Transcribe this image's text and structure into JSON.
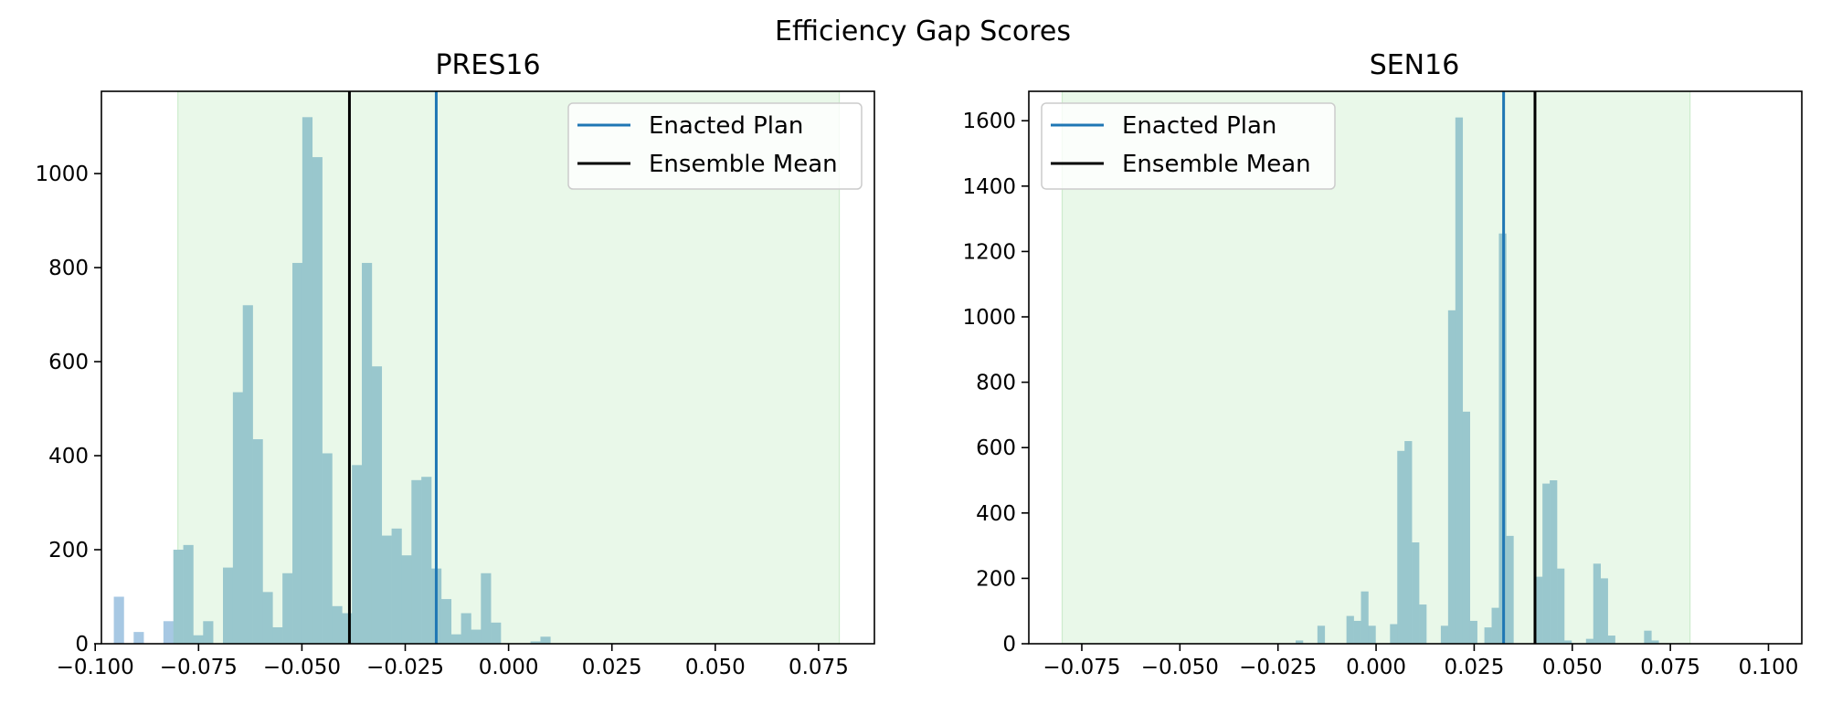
{
  "title": "Efficiency Gap Scores",
  "colors": {
    "band": "#e9f8e9",
    "band_edge": "#cdeccd",
    "bar_in_band": "#99c7cd",
    "bar_out_band": "#a7c8e3",
    "enacted": "#1f77b4",
    "mean": "#000000"
  },
  "chart_data": [
    {
      "type": "histogram",
      "title": "PRES16",
      "xlim": [
        -0.0985,
        0.0885
      ],
      "ylim": [
        0,
        1175
      ],
      "xticks": [
        -0.1,
        -0.075,
        -0.05,
        -0.025,
        0.0,
        0.025,
        0.05,
        0.075
      ],
      "xtick_labels": [
        "−0.100",
        "−0.075",
        "−0.050",
        "−0.025",
        "0.000",
        "0.025",
        "0.050",
        "0.075"
      ],
      "yticks": [
        0,
        200,
        400,
        600,
        800,
        1000
      ],
      "ytick_labels": [
        "0",
        "200",
        "400",
        "600",
        "800",
        "1000"
      ],
      "band": [
        -0.08,
        0.08
      ],
      "bin_start": -0.0955,
      "bin_width": 0.0024,
      "counts": [
        100,
        0,
        25,
        0,
        0,
        48,
        200,
        210,
        18,
        48,
        0,
        162,
        535,
        720,
        435,
        110,
        35,
        150,
        810,
        1120,
        1035,
        405,
        80,
        65,
        380,
        810,
        590,
        230,
        245,
        188,
        348,
        355,
        160,
        95,
        20,
        65,
        30,
        150,
        45,
        0,
        0,
        0,
        5,
        15
      ],
      "enacted_plan": -0.0175,
      "ensemble_mean": -0.0385,
      "legend": [
        "Enacted Plan",
        "Ensemble Mean"
      ],
      "legend_position": "upper right"
    },
    {
      "type": "histogram",
      "title": "SEN16",
      "xlim": [
        -0.0885,
        0.1085
      ],
      "ylim": [
        0,
        1690
      ],
      "xticks": [
        -0.075,
        -0.05,
        -0.025,
        0.0,
        0.025,
        0.05,
        0.075,
        0.1
      ],
      "xtick_labels": [
        "−0.075",
        "−0.050",
        "−0.025",
        "0.000",
        "0.025",
        "0.050",
        "0.075",
        "0.100"
      ],
      "yticks": [
        0,
        200,
        400,
        600,
        800,
        1000,
        1200,
        1400,
        1600
      ],
      "ytick_labels": [
        "0",
        "200",
        "400",
        "600",
        "800",
        "1000",
        "1200",
        "1400",
        "1600"
      ],
      "band": [
        -0.08,
        0.08
      ],
      "bin_start": -0.0205,
      "bin_width": 0.00185,
      "counts": [
        10,
        0,
        0,
        55,
        0,
        0,
        0,
        85,
        70,
        160,
        55,
        0,
        0,
        60,
        590,
        620,
        310,
        120,
        0,
        0,
        55,
        1020,
        1610,
        710,
        70,
        0,
        50,
        110,
        1255,
        330,
        0,
        0,
        0,
        205,
        490,
        500,
        230,
        10,
        0,
        0,
        15,
        245,
        200,
        25,
        0,
        0,
        0,
        0,
        40,
        10
      ],
      "enacted_plan": 0.0325,
      "ensemble_mean": 0.0405,
      "legend": [
        "Enacted Plan",
        "Ensemble Mean"
      ],
      "legend_position": "upper left"
    }
  ]
}
